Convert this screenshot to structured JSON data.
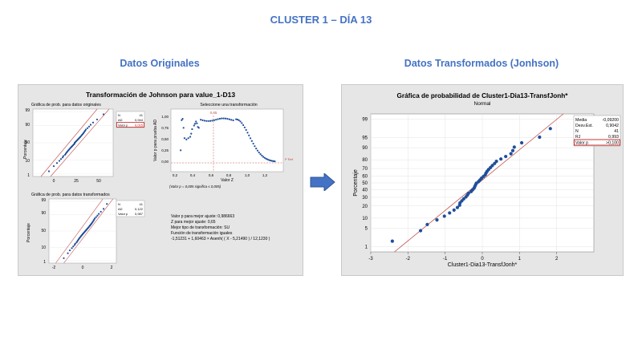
{
  "slide": {
    "title": "CLUSTER 1 – DÍA 13",
    "left_heading": "Datos Originales",
    "right_heading": "Datos Transformados (Jonhson)"
  },
  "colors": {
    "accent": "#4472c4",
    "points": "#1f4e9a",
    "fit_line": "#c0504d",
    "panel": "#e6e6e6",
    "arrow": "#4472c4"
  },
  "icons": {
    "arrow": "right-arrow-icon"
  },
  "left_report": {
    "title": "Transformación de Johnson para value_1-D13",
    "orig_plot_title": "Gráfica de prob. para datos originales",
    "trans_plot_title": "Gráfica de prob. para datos transformados",
    "select_title": "Seleccione una transformación",
    "ylabel_pct": "Porcentaje",
    "orig_stats": {
      "n_label": "N",
      "n": "41",
      "ad_label": "AD",
      "ad": "0,944",
      "p_label": "Valor p",
      "p": "0,015"
    },
    "trans_stats": {
      "n_label": "N",
      "n": "41",
      "ad_label": "AD",
      "ad": "0,122",
      "p_label": "Valor p",
      "p": "0,987"
    },
    "ad_plot": {
      "ylabel": "Valor p para prueba AD",
      "xlabel": "Valor Z",
      "zmark": "0,65",
      "ref_label": "P Ref",
      "note": "(Valor p = 0,005 significa ≤ 0,005)"
    },
    "summary": [
      "Valor p para mejor ajuste: 0,986663",
      "Z para mejor ajuste: 0,65",
      "Mejor tipo de transformación: SU",
      "Función de transformación iguales",
      "-1,51231 + 1,60463 × Asenh( ( X - 5,21490 ) / 12,1230 )"
    ]
  },
  "right_stats": [
    {
      "label": "Media",
      "value": "-0,09200"
    },
    {
      "label": "Desv.Est.",
      "value": "0,9042"
    },
    {
      "label": "N",
      "value": "41"
    },
    {
      "label": "RJ",
      "value": "0,993"
    },
    {
      "label": "Valor p",
      "value": ">0,100"
    }
  ],
  "chart_data": [
    {
      "type": "scatter",
      "title": "Gráfica de probabilidad de Cluster1-Dia13-TransfJonh*",
      "subtitle": "Normal",
      "xlabel": "Cluster1-Dia13-TransfJonh*",
      "ylabel": "Porcentaje",
      "xlim": [
        -3,
        3
      ],
      "xticks": [
        -3,
        -2,
        -1,
        0,
        1,
        2
      ],
      "yticks": [
        1,
        5,
        10,
        20,
        30,
        40,
        50,
        60,
        70,
        80,
        90,
        95,
        99
      ],
      "fit_line": {
        "mean": -0.092,
        "sd": 0.9042
      },
      "x": [
        -2.42,
        -1.66,
        -1.48,
        -1.22,
        -1.02,
        -0.88,
        -0.76,
        -0.67,
        -0.61,
        -0.6,
        -0.55,
        -0.5,
        -0.44,
        -0.4,
        -0.37,
        -0.3,
        -0.26,
        -0.22,
        -0.2,
        -0.18,
        -0.16,
        -0.1,
        -0.06,
        -0.02,
        0.03,
        0.08,
        0.1,
        0.13,
        0.17,
        0.22,
        0.27,
        0.33,
        0.38,
        0.5,
        0.63,
        0.77,
        0.82,
        0.86,
        1.06,
        1.54,
        1.83
      ],
      "y": [
        1.7,
        4.1,
        6.5,
        8.9,
        11.3,
        13.7,
        16.1,
        18.5,
        20.9,
        23.3,
        25.7,
        28.1,
        30.5,
        32.9,
        35.3,
        37.7,
        40.1,
        42.5,
        44.9,
        47.3,
        49.6,
        52.0,
        54.4,
        56.8,
        59.2,
        61.6,
        64.0,
        66.4,
        68.8,
        71.2,
        73.6,
        76.0,
        78.4,
        80.8,
        83.2,
        85.6,
        88.0,
        90.4,
        92.8,
        95.2,
        97.6
      ]
    }
  ]
}
